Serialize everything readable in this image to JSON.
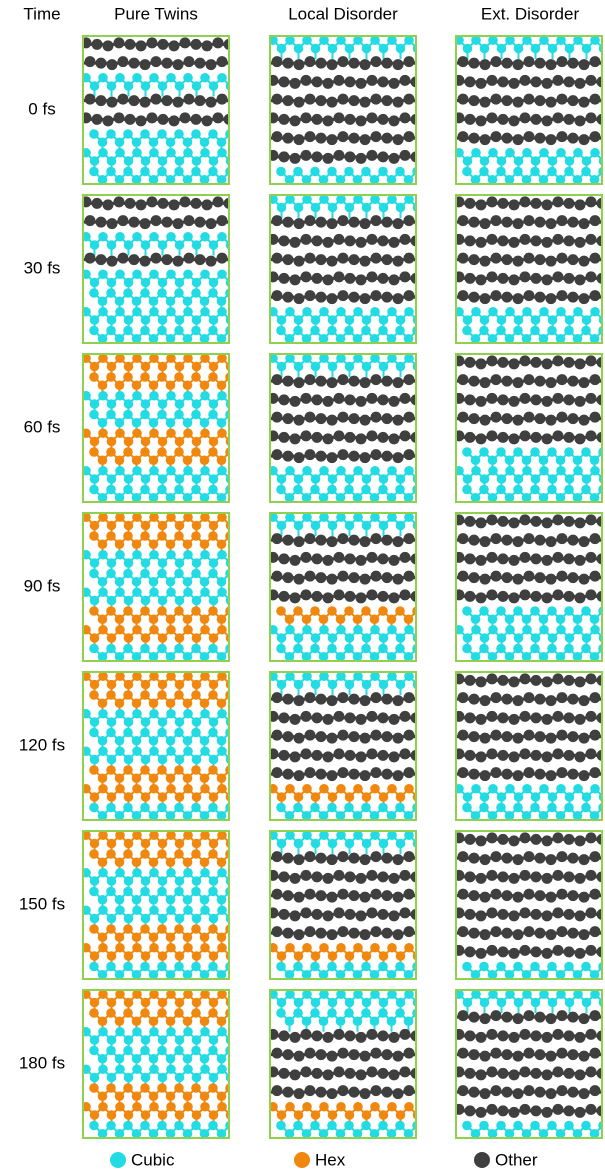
{
  "headers": [
    "Time",
    "Pure Twins",
    "Local Disorder",
    "Ext. Disorder"
  ],
  "rows": [
    {
      "time": "0 fs"
    },
    {
      "time": "30 fs"
    },
    {
      "time": "60 fs"
    },
    {
      "time": "90 fs"
    },
    {
      "time": "120 fs"
    },
    {
      "time": "150 fs"
    },
    {
      "time": "180 fs"
    }
  ],
  "legend": [
    {
      "label": "Cubic"
    },
    {
      "label": "Hex"
    },
    {
      "label": "Other"
    }
  ]
}
